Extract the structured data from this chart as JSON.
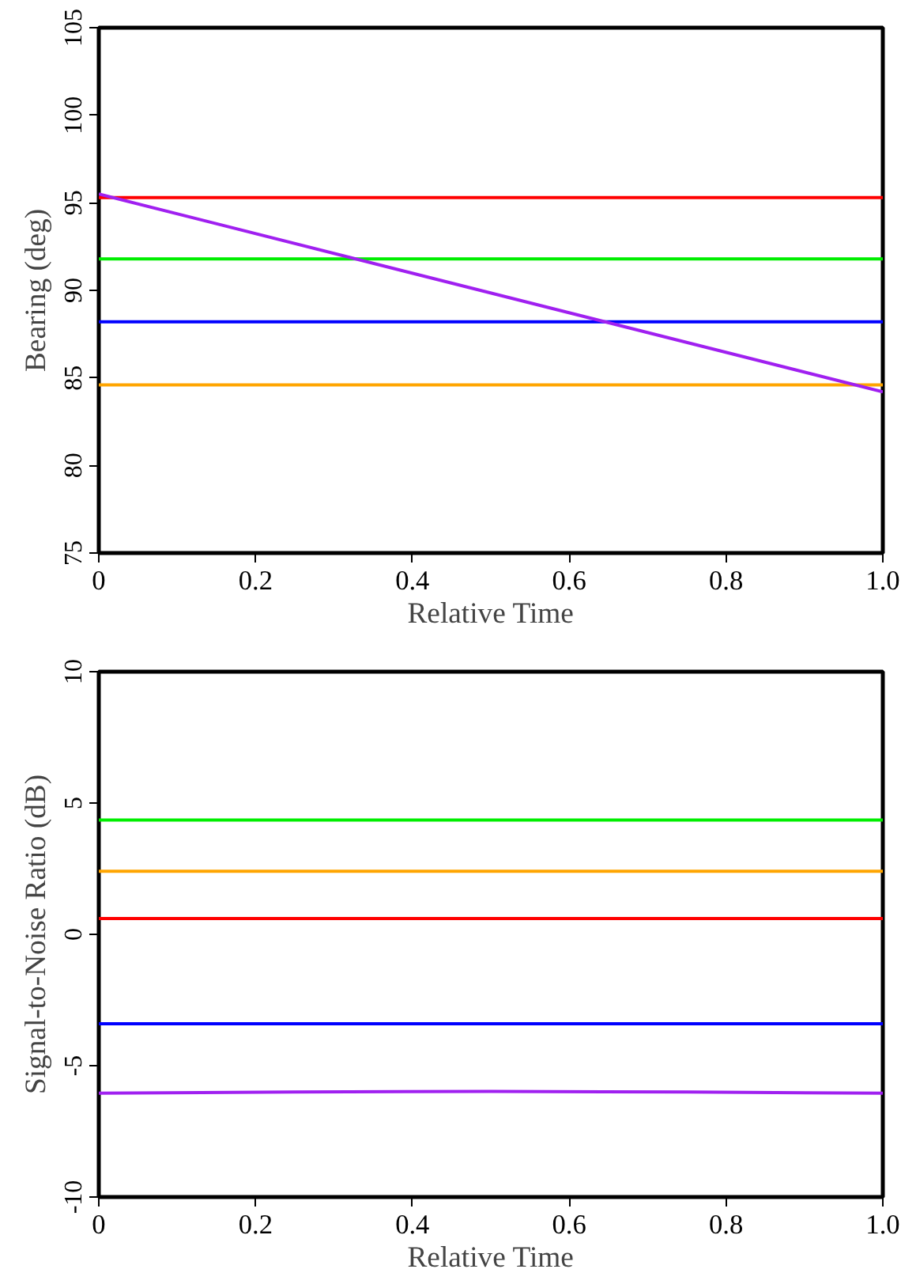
{
  "chart_data": [
    {
      "type": "line",
      "xlabel": "Relative Time",
      "ylabel": "Bearing (deg)",
      "xlim": [
        0,
        1
      ],
      "ylim": [
        75,
        105
      ],
      "xticks": [
        0,
        0.2,
        0.4,
        0.6,
        0.8,
        {
          "value": 1,
          "label": "1.0"
        }
      ],
      "yticks": [
        75,
        80,
        85,
        90,
        95,
        100,
        105
      ],
      "series": [
        {
          "color": "#ff0000",
          "x": [
            0,
            1
          ],
          "values": [
            95.3,
            95.3
          ]
        },
        {
          "color": "#00ee00",
          "x": [
            0,
            1
          ],
          "values": [
            91.8,
            91.8
          ]
        },
        {
          "color": "#0000ff",
          "x": [
            0,
            1
          ],
          "values": [
            88.2,
            88.2
          ]
        },
        {
          "color": "#ffa500",
          "x": [
            0,
            1
          ],
          "values": [
            84.6,
            84.6
          ]
        },
        {
          "color": "#a020f0",
          "x": [
            0,
            1
          ],
          "values": [
            95.5,
            84.2
          ]
        }
      ]
    },
    {
      "type": "line",
      "xlabel": "Relative Time",
      "ylabel": "Signal-to-Noise Ratio (dB)",
      "xlim": [
        0,
        1
      ],
      "ylim": [
        -10,
        10
      ],
      "xticks": [
        0,
        0.2,
        0.4,
        0.6,
        0.8,
        {
          "value": 1,
          "label": "1.0"
        }
      ],
      "yticks": [
        -10,
        -5,
        0,
        5,
        10
      ],
      "series": [
        {
          "color": "#00ee00",
          "x": [
            0,
            1
          ],
          "values": [
            4.35,
            4.35
          ]
        },
        {
          "color": "#ffa500",
          "x": [
            0,
            1
          ],
          "values": [
            2.4,
            2.4
          ]
        },
        {
          "color": "#ff0000",
          "x": [
            0,
            1
          ],
          "values": [
            0.6,
            0.6
          ]
        },
        {
          "color": "#0000ff",
          "x": [
            0,
            1
          ],
          "values": [
            -3.4,
            -3.4
          ]
        },
        {
          "color": "#a020f0",
          "x": [
            0,
            0.25,
            0.5,
            0.75,
            1
          ],
          "values": [
            -6.05,
            -6.0,
            -5.98,
            -6.0,
            -6.05
          ]
        }
      ]
    }
  ]
}
